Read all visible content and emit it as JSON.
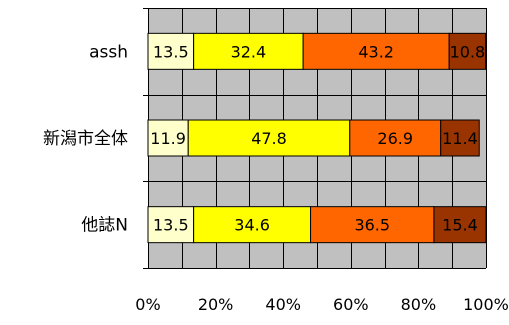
{
  "chart_data": {
    "type": "bar",
    "orientation": "horizontal",
    "stacked": true,
    "percent_stacked": true,
    "categories": [
      "assh",
      "新潟市全体",
      "他誌N"
    ],
    "series": [
      {
        "values": [
          13.5,
          11.9,
          13.5
        ],
        "color": "#ffffcc"
      },
      {
        "values": [
          32.4,
          47.8,
          34.6
        ],
        "color": "#ffff00"
      },
      {
        "values": [
          43.2,
          26.9,
          36.5
        ],
        "color": "#ff6600"
      },
      {
        "values": [
          10.8,
          11.4,
          15.4
        ],
        "color": "#993300"
      }
    ],
    "data_labels": [
      [
        "13.5",
        "32.4",
        "43.2",
        "10.8"
      ],
      [
        "11.9",
        "47.8",
        "26.9",
        "11.4"
      ],
      [
        "13.5",
        "34.6",
        "36.5",
        "15.4"
      ]
    ],
    "x_ticks": [
      "0%",
      "20%",
      "40%",
      "60%",
      "80%",
      "100%"
    ],
    "xlim": [
      0,
      100
    ],
    "title": "",
    "xlabel": "",
    "ylabel": "",
    "grid": true,
    "plot_background": "#c0c0c0",
    "legend": "none"
  }
}
